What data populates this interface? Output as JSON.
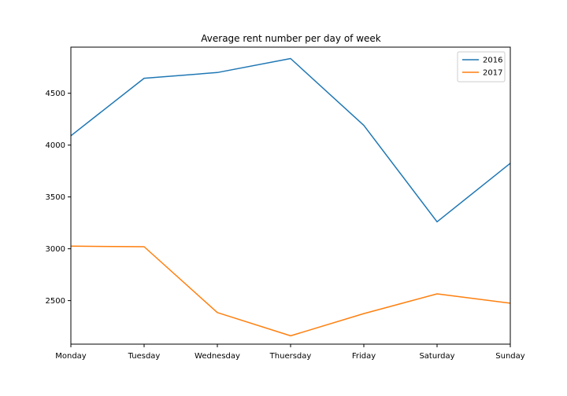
{
  "chart_data": {
    "type": "line",
    "title": "Average rent number per day of week",
    "xlabel": "",
    "ylabel": "",
    "categories": [
      "Monday",
      "Tuesday",
      "Wednesday",
      "Thuersday",
      "Friday",
      "Saturday",
      "Sunday"
    ],
    "series": [
      {
        "name": "2016",
        "color": "#1f77b4",
        "values": [
          4090,
          4645,
          4700,
          4835,
          4190,
          3260,
          3825
        ]
      },
      {
        "name": "2017",
        "color": "#ff7f0e",
        "values": [
          3025,
          3020,
          2385,
          2160,
          2375,
          2565,
          2475
        ]
      }
    ],
    "ylim": [
      2080,
      4945
    ],
    "yticks": [
      2500,
      3000,
      3500,
      4000,
      4500
    ],
    "grid": false,
    "legend_position": "top-right"
  }
}
